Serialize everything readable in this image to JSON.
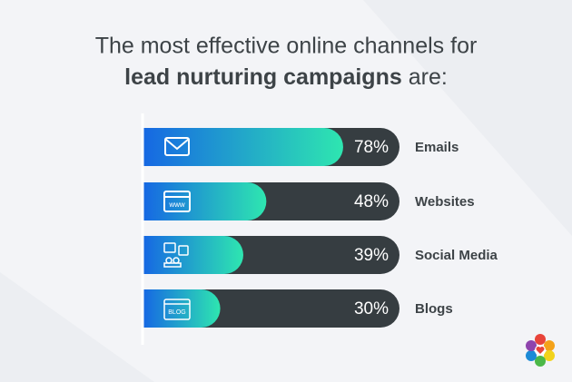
{
  "chart_data": {
    "type": "bar",
    "orientation": "horizontal",
    "title": {
      "line1": "The most effective online channels for",
      "bold": "lead nurturing campaigns",
      "rest": "are:"
    },
    "categories": [
      "Emails",
      "Websites",
      "Social Media",
      "Blogs"
    ],
    "values": [
      78,
      48,
      39,
      30
    ],
    "value_labels": [
      "78%",
      "48%",
      "39%",
      "30%"
    ],
    "xlim": [
      0,
      100
    ],
    "color_start": "#1668e3",
    "color_end": "#2ee6b0",
    "track_color": "#363d41"
  }
}
